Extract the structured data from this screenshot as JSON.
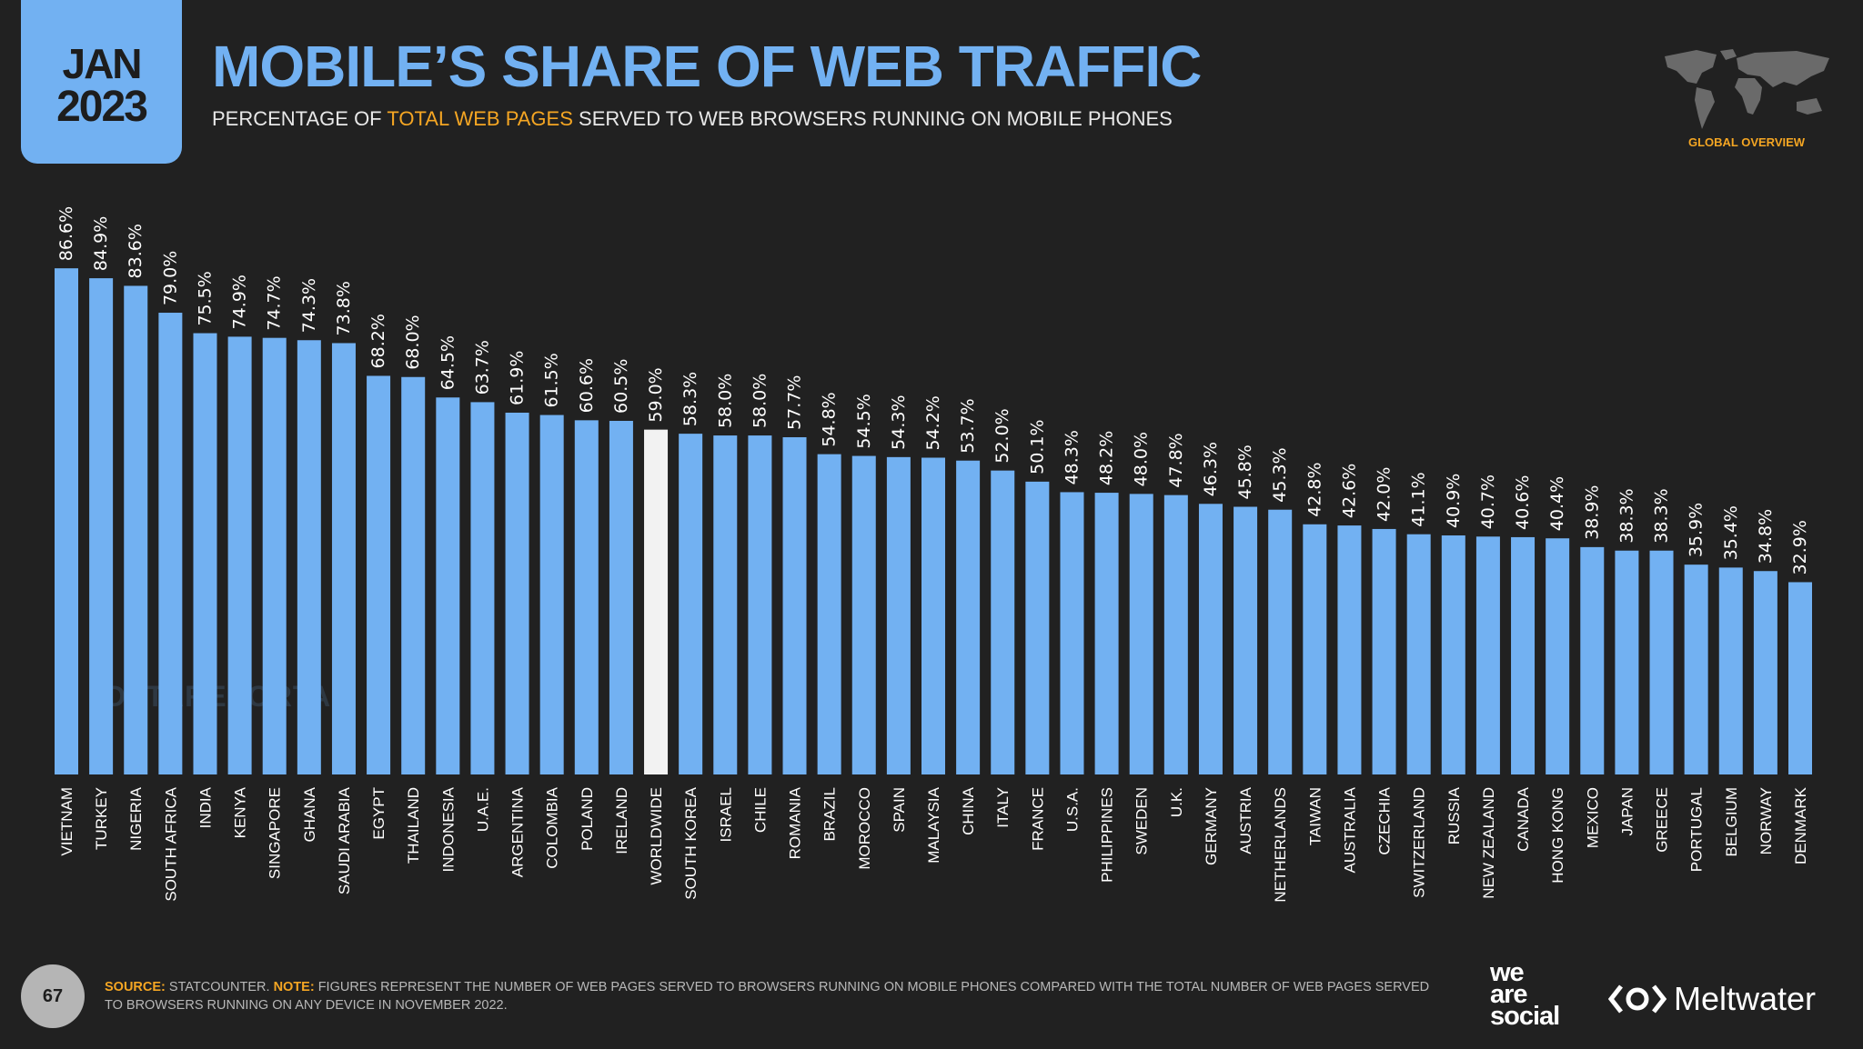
{
  "header": {
    "month": "JAN",
    "year": "2023",
    "title": "MOBILE’S SHARE OF WEB TRAFFIC",
    "subtitle_pre": "PERCENTAGE OF ",
    "subtitle_highlight": "TOTAL WEB PAGES",
    "subtitle_post": " SERVED TO WEB BROWSERS RUNNING ON MOBILE PHONES",
    "section": "GLOBAL OVERVIEW"
  },
  "watermark": "DATAREPORTAL",
  "footer": {
    "page": "67",
    "source_label": "SOURCE:",
    "source": " STATCOUNTER. ",
    "note_label": "NOTE:",
    "note": " FIGURES REPRESENT THE NUMBER OF WEB PAGES SERVED TO BROWSERS RUNNING ON MOBILE PHONES COMPARED WITH THE TOTAL NUMBER OF WEB PAGES SERVED TO BROWSERS RUNNING ON ANY DEVICE IN NOVEMBER 2022.",
    "logo1": "we are social",
    "logo2": "Meltwater"
  },
  "colors": {
    "bar": "#72b1f2",
    "highlight": "#f2f2f2",
    "accent": "#f5a623"
  },
  "chart_data": {
    "type": "bar",
    "title": "MOBILE’S SHARE OF WEB TRAFFIC",
    "ylabel": "",
    "xlabel": "",
    "ylim": [
      0,
      100
    ],
    "unit": "%",
    "highlight": "WORLDWIDE",
    "categories": [
      "VIETNAM",
      "TURKEY",
      "NIGERIA",
      "SOUTH AFRICA",
      "INDIA",
      "KENYA",
      "SINGAPORE",
      "GHANA",
      "SAUDI ARABIA",
      "EGYPT",
      "THAILAND",
      "INDONESIA",
      "U.A.E.",
      "ARGENTINA",
      "COLOMBIA",
      "POLAND",
      "IRELAND",
      "WORLDWIDE",
      "SOUTH KOREA",
      "ISRAEL",
      "CHILE",
      "ROMANIA",
      "BRAZIL",
      "MOROCCO",
      "SPAIN",
      "MALAYSIA",
      "CHINA",
      "ITALY",
      "FRANCE",
      "U.S.A.",
      "PHILIPPINES",
      "SWEDEN",
      "U.K.",
      "GERMANY",
      "AUSTRIA",
      "NETHERLANDS",
      "TAIWAN",
      "AUSTRALIA",
      "CZECHIA",
      "SWITZERLAND",
      "RUSSIA",
      "NEW ZEALAND",
      "CANADA",
      "HONG KONG",
      "MEXICO",
      "JAPAN",
      "GREECE",
      "PORTUGAL",
      "BELGIUM",
      "NORWAY",
      "DENMARK"
    ],
    "values": [
      86.6,
      84.9,
      83.6,
      79.0,
      75.5,
      74.9,
      74.7,
      74.3,
      73.8,
      68.2,
      68.0,
      64.5,
      63.7,
      61.9,
      61.5,
      60.6,
      60.5,
      59.0,
      58.3,
      58.0,
      58.0,
      57.7,
      54.8,
      54.5,
      54.3,
      54.2,
      53.7,
      52.0,
      50.1,
      48.3,
      48.2,
      48.0,
      47.8,
      46.3,
      45.8,
      45.3,
      42.8,
      42.6,
      42.0,
      41.1,
      40.9,
      40.7,
      40.6,
      40.4,
      38.9,
      38.3,
      38.3,
      35.9,
      35.4,
      34.8,
      32.9
    ]
  }
}
